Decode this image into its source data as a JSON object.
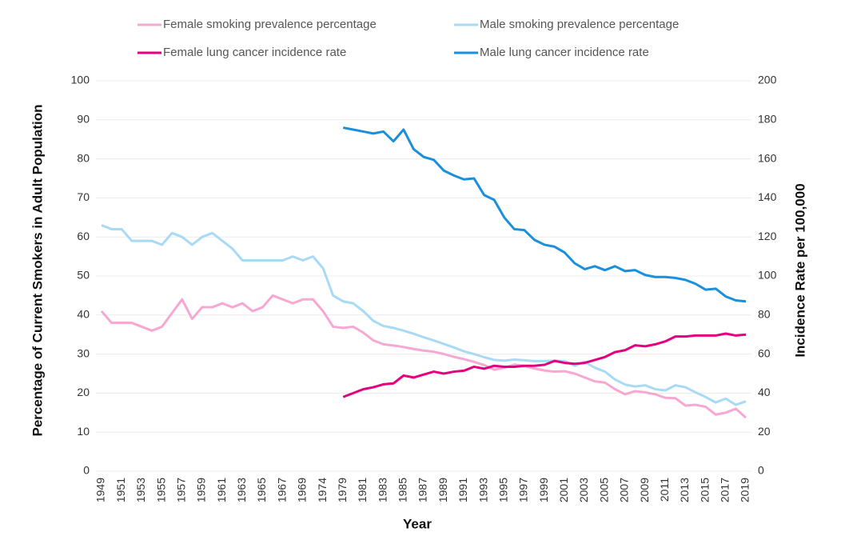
{
  "chart_data": {
    "type": "line",
    "x_label": "Year",
    "y_label": "Percentage of Current Smokers in Adult Population",
    "y2_label": "Incidence Rate per 100,000",
    "categories": [
      1949,
      null,
      1951,
      null,
      1953,
      null,
      1955,
      null,
      1957,
      null,
      1959,
      null,
      1961,
      null,
      1963,
      null,
      1965,
      null,
      1967,
      null,
      1969,
      null,
      1974,
      null,
      1979,
      null,
      1981,
      null,
      1983,
      null,
      1985,
      null,
      1987,
      null,
      1989,
      null,
      1991,
      null,
      1993,
      null,
      1995,
      null,
      1997,
      null,
      1999,
      null,
      2001,
      null,
      2003,
      null,
      2005,
      null,
      2007,
      null,
      2009,
      null,
      2011,
      null,
      2013,
      null,
      2015,
      null,
      2017,
      null,
      2019
    ],
    "ylim": [
      0,
      100
    ],
    "yticks": [
      0,
      10,
      20,
      30,
      40,
      50,
      60,
      70,
      80,
      90,
      100
    ],
    "y2lim": [
      0,
      200
    ],
    "y2ticks": [
      0,
      20,
      40,
      60,
      80,
      100,
      120,
      140,
      160,
      180,
      200
    ],
    "grid": true,
    "series": [
      {
        "name": "Female smoking prevalence percentage",
        "color": "#f7a8d2",
        "values": [
          41,
          38,
          38,
          38,
          37,
          36,
          37,
          40.5,
          44,
          39,
          42,
          42,
          43,
          42,
          43,
          41,
          42,
          45,
          44,
          43,
          44,
          44,
          41,
          37,
          36.7,
          37,
          35.5,
          33.5,
          32.5,
          32.2,
          31.8,
          31.3,
          30.9,
          30.6,
          30,
          29.3,
          28.7,
          28,
          27.2,
          26,
          26.5,
          27.3,
          27,
          26.3,
          25.8,
          25.5,
          25.6,
          25,
          24,
          23,
          22.7,
          21,
          19.7,
          20.5,
          20.2,
          19.7,
          18.8,
          18.7,
          16.8,
          17,
          16.5,
          14.5,
          15,
          16,
          13.7
        ]
      },
      {
        "name": "Male smoking prevalence percentage",
        "color": "#a8daf5",
        "values": [
          63,
          62,
          62,
          59,
          59,
          59,
          58,
          61,
          60,
          58,
          60,
          61,
          59,
          57,
          54,
          54,
          54,
          54,
          54,
          55,
          54,
          55,
          52,
          45,
          43.5,
          43,
          41,
          38.5,
          37.2,
          36.7,
          36,
          35.2,
          34.3,
          33.5,
          32.6,
          31.7,
          30.7,
          30,
          29.2,
          28.5,
          28.3,
          28.6,
          28.4,
          28.2,
          28.2,
          28.3,
          28.2,
          27,
          28,
          26.5,
          25.5,
          23.5,
          22.2,
          21.7,
          22,
          21,
          20.7,
          22,
          21.5,
          20.2,
          19,
          17.6,
          18.6,
          17,
          17.9
        ]
      },
      {
        "name": "Female lung cancer incidence rate",
        "color": "#e6007e",
        "axis": "y2",
        "values": [
          null,
          null,
          null,
          null,
          null,
          null,
          null,
          null,
          null,
          null,
          null,
          null,
          null,
          null,
          null,
          null,
          null,
          null,
          null,
          null,
          null,
          null,
          null,
          null,
          38,
          40,
          42,
          43,
          44.5,
          45,
          49,
          48,
          49.5,
          51,
          50,
          51,
          51.5,
          53.5,
          52.5,
          54,
          53.5,
          53.5,
          54,
          54,
          54.5,
          56.5,
          55.5,
          55,
          55.5,
          57,
          58.5,
          61,
          62,
          64.5,
          64,
          65,
          66.5,
          69,
          69,
          69.5,
          69.5,
          69.5,
          70.5,
          69.5,
          70
        ]
      },
      {
        "name": "Male lung cancer incidence rate",
        "color": "#1a8fdc",
        "axis": "y2",
        "values": [
          null,
          null,
          null,
          null,
          null,
          null,
          null,
          null,
          null,
          null,
          null,
          null,
          null,
          null,
          null,
          null,
          null,
          null,
          null,
          null,
          null,
          null,
          null,
          null,
          176,
          175,
          174,
          173,
          174,
          169,
          175,
          165,
          161,
          159.5,
          154,
          151.5,
          149.5,
          150,
          141.5,
          139,
          130,
          124,
          123.5,
          118.5,
          116,
          115,
          112,
          106.5,
          103.5,
          105,
          103,
          105,
          102.5,
          103,
          100.5,
          99.5,
          99.5,
          99,
          98,
          96,
          93,
          93.5,
          89.5,
          87.5,
          87
        ]
      }
    ]
  }
}
